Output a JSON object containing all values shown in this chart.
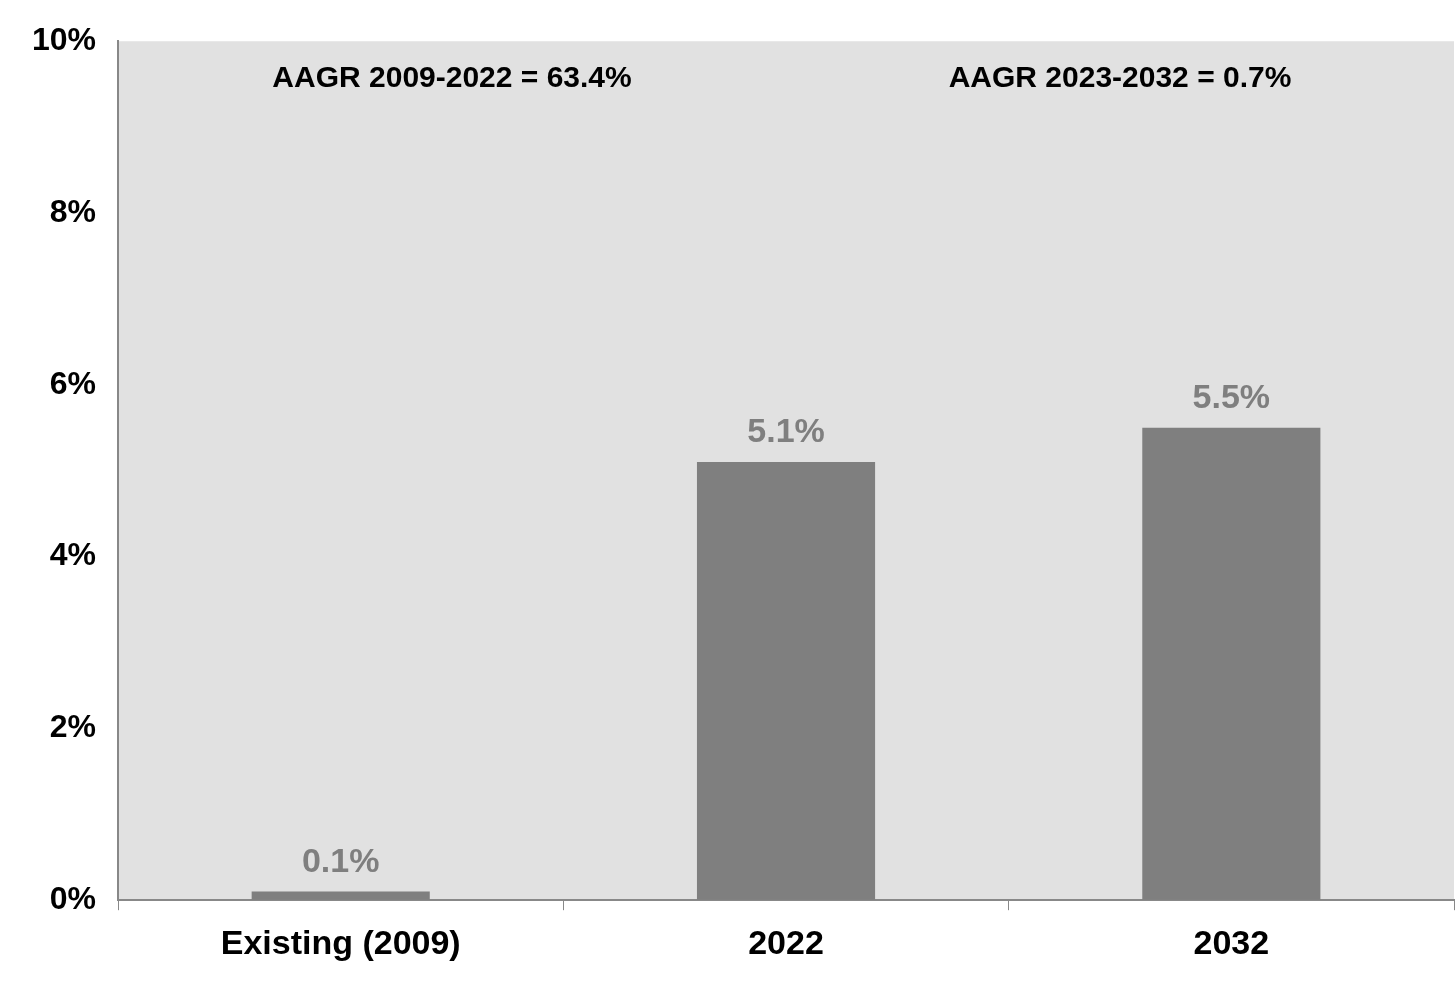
{
  "chart_data": {
    "type": "bar",
    "categories": [
      "Existing (2009)",
      "2022",
      "2032"
    ],
    "values": [
      0.1,
      5.1,
      5.5
    ],
    "color": "#7f7f7f",
    "value_labels": [
      "0.1%",
      "5.1%",
      "5.5%"
    ],
    "ylim": [
      0,
      10
    ],
    "yticks": [
      {
        "value": 0,
        "label": "0%"
      },
      {
        "value": 2,
        "label": "2%"
      },
      {
        "value": 4,
        "label": "4%"
      },
      {
        "value": 6,
        "label": "6%"
      },
      {
        "value": 8,
        "label": "8%"
      },
      {
        "value": 10,
        "label": "10%"
      }
    ],
    "annotations": [
      "AAGR 2009-2022 = 63.4%",
      "AAGR 2023-2032 = 0.7%"
    ],
    "grid": false,
    "legend": false
  }
}
